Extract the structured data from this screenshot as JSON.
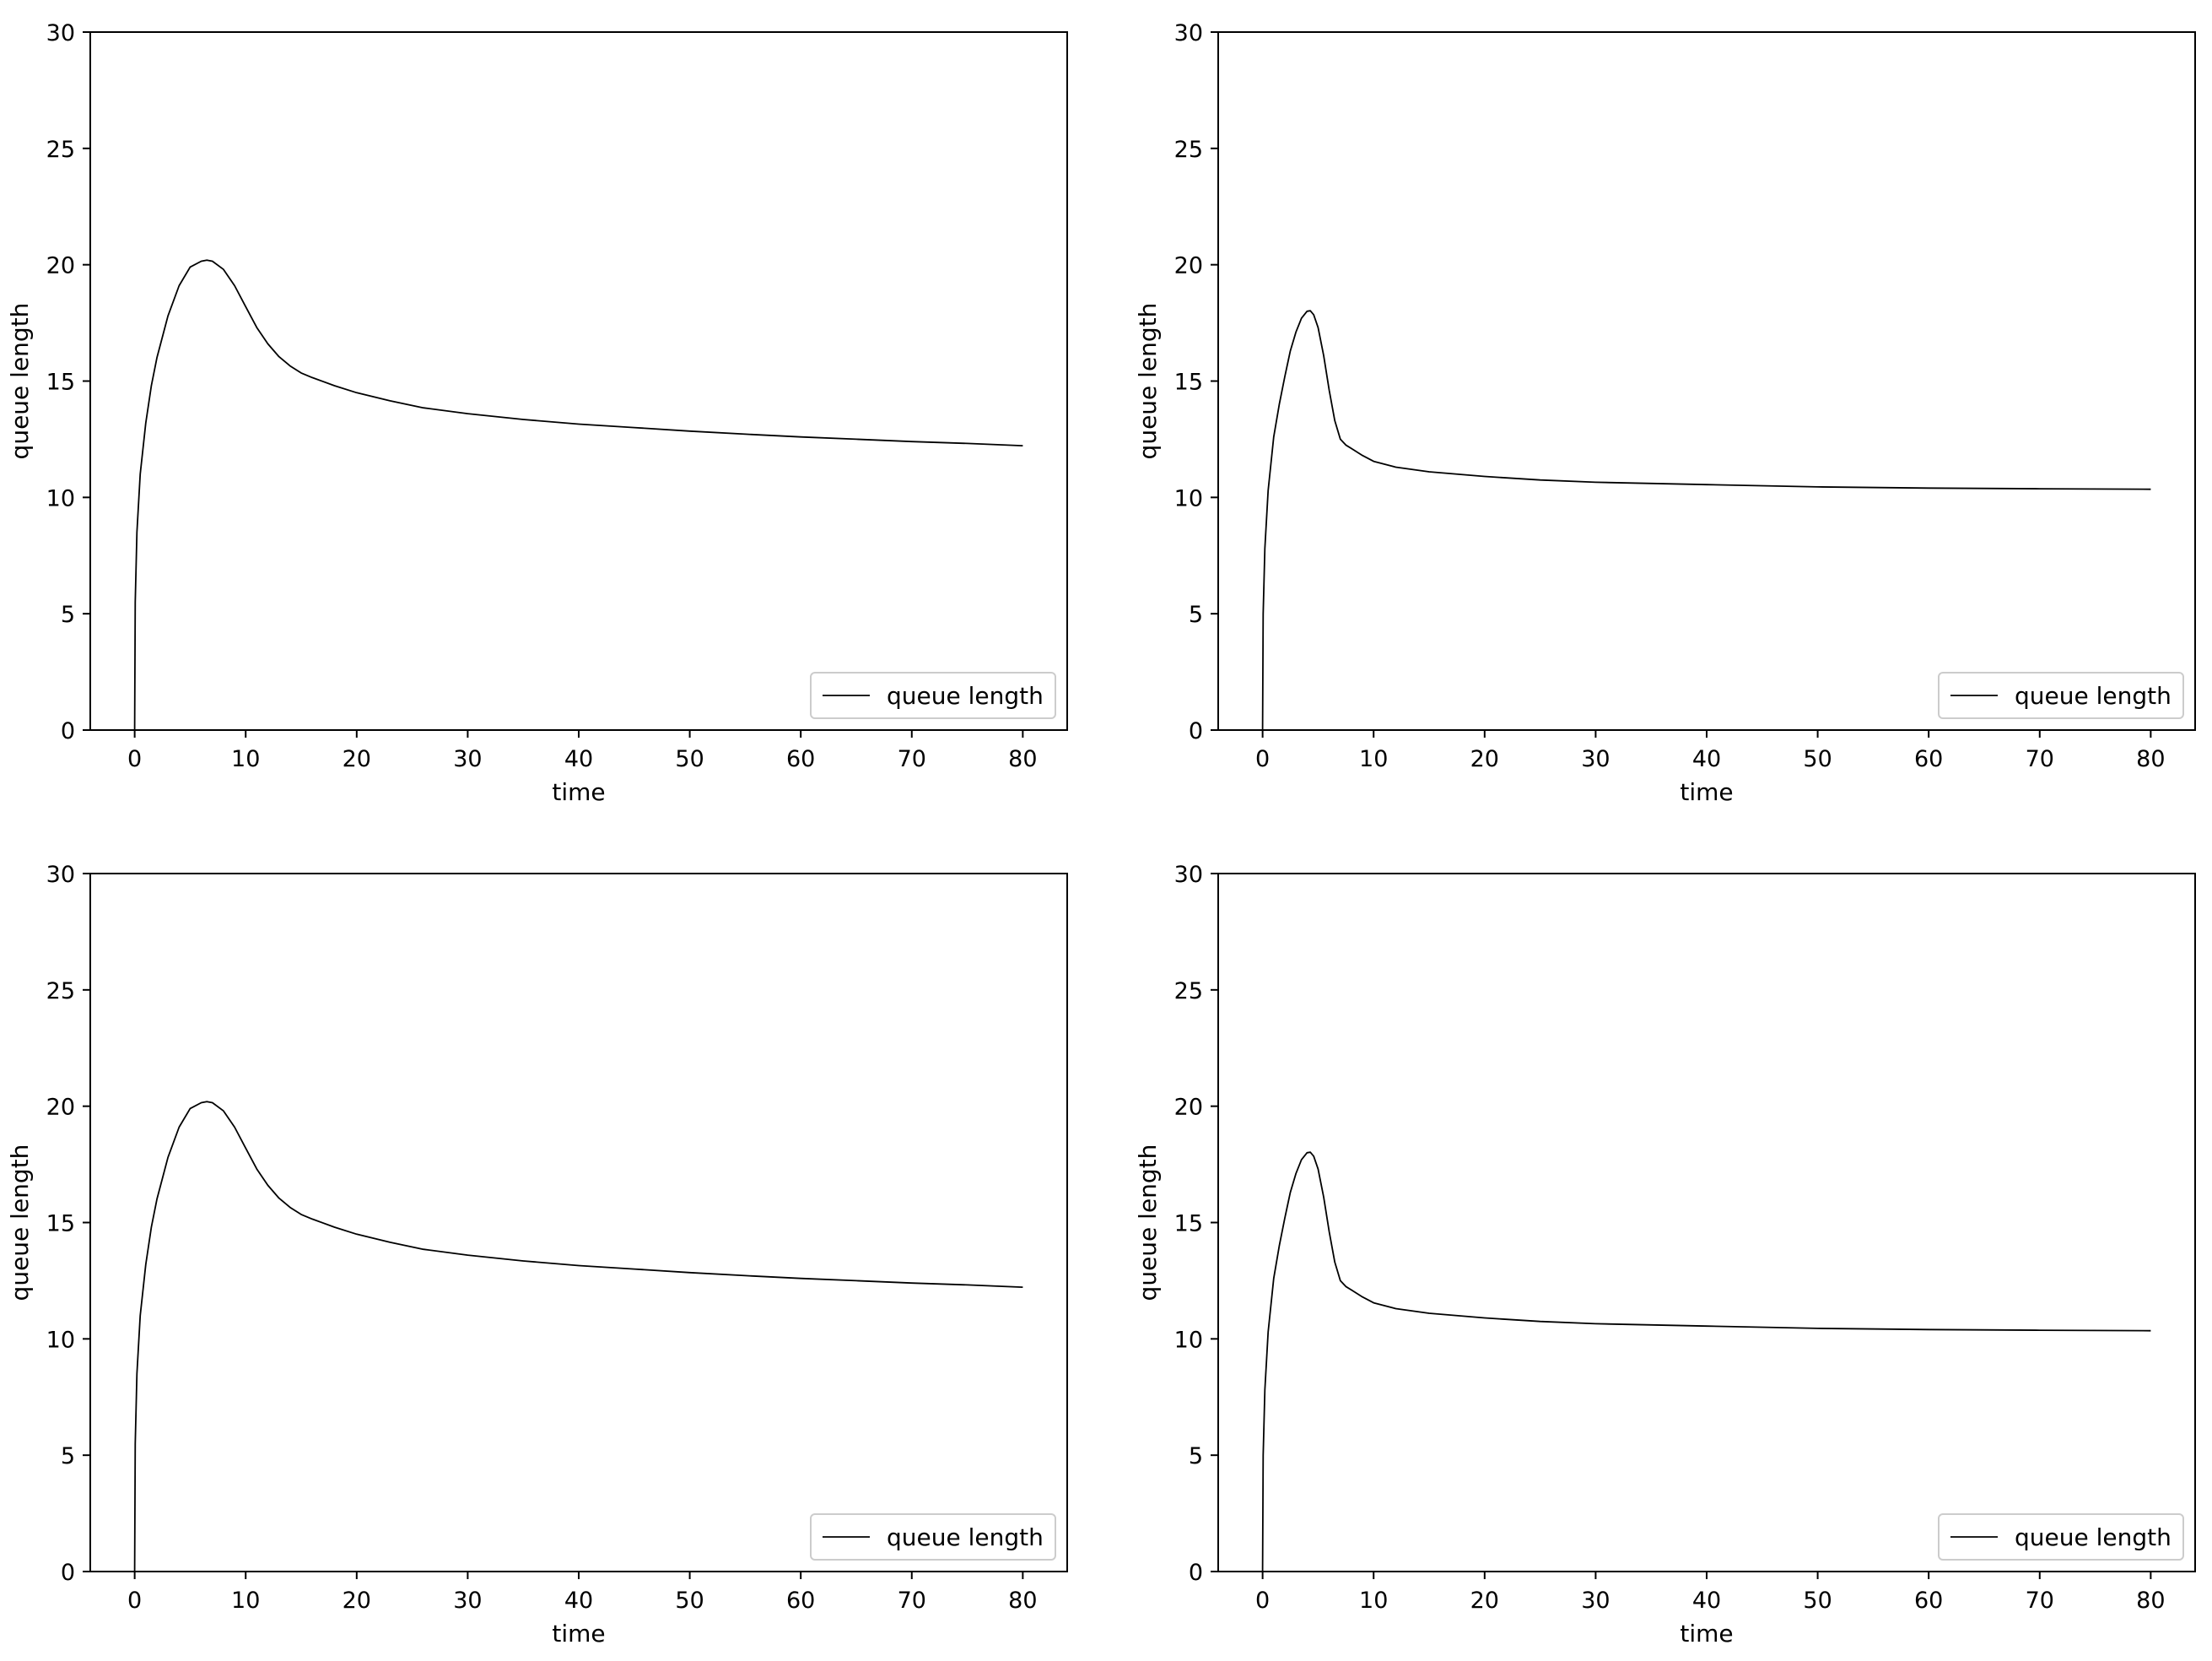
{
  "chart_data": [
    {
      "type": "line",
      "xlabel": "time",
      "ylabel": "queue length",
      "xlim": [
        -4,
        84
      ],
      "ylim": [
        0,
        30
      ],
      "xticks": [
        0,
        10,
        20,
        30,
        40,
        50,
        60,
        70,
        80
      ],
      "yticks": [
        0,
        5,
        10,
        15,
        20,
        25,
        30
      ],
      "grid": false,
      "legend_position": "lower right",
      "series": [
        {
          "name": "queue length",
          "color": "#000000",
          "x": [
            0,
            0.05,
            0.2,
            0.5,
            1,
            1.5,
            2,
            3,
            4,
            5,
            6,
            6.5,
            7,
            8,
            9,
            10,
            11,
            12,
            13,
            14,
            15,
            16,
            18,
            20,
            23,
            26,
            30,
            35,
            40,
            45,
            50,
            55,
            60,
            65,
            70,
            75,
            80
          ],
          "y": [
            0,
            5.5,
            8.5,
            11,
            13.2,
            14.8,
            16,
            17.8,
            19.1,
            19.9,
            20.15,
            20.2,
            20.15,
            19.8,
            19.1,
            18.2,
            17.3,
            16.6,
            16.05,
            15.65,
            15.35,
            15.15,
            14.8,
            14.5,
            14.15,
            13.85,
            13.6,
            13.35,
            13.15,
            13,
            12.85,
            12.72,
            12.6,
            12.5,
            12.4,
            12.32,
            12.22
          ]
        }
      ]
    },
    {
      "type": "line",
      "xlabel": "time",
      "ylabel": "queue length",
      "xlim": [
        -4,
        84
      ],
      "ylim": [
        0,
        30
      ],
      "xticks": [
        0,
        10,
        20,
        30,
        40,
        50,
        60,
        70,
        80
      ],
      "yticks": [
        0,
        5,
        10,
        15,
        20,
        25,
        30
      ],
      "grid": false,
      "legend_position": "lower right",
      "series": [
        {
          "name": "queue length",
          "color": "#000000",
          "x": [
            0,
            0.05,
            0.2,
            0.5,
            1,
            1.5,
            2,
            2.5,
            3,
            3.5,
            4,
            4.3,
            4.6,
            5,
            5.5,
            6,
            6.5,
            7,
            7.5,
            8,
            9,
            10,
            12,
            15,
            20,
            25,
            30,
            40,
            50,
            60,
            70,
            80
          ],
          "y": [
            0,
            5,
            7.8,
            10.3,
            12.6,
            14,
            15.2,
            16.3,
            17.1,
            17.7,
            18,
            18.02,
            17.85,
            17.3,
            16.1,
            14.6,
            13.3,
            12.5,
            12.25,
            12.1,
            11.8,
            11.55,
            11.3,
            11.1,
            10.9,
            10.75,
            10.65,
            10.55,
            10.45,
            10.4,
            10.37,
            10.35
          ]
        }
      ]
    },
    {
      "type": "line",
      "xlabel": "time",
      "ylabel": "queue length",
      "xlim": [
        -4,
        84
      ],
      "ylim": [
        0,
        30
      ],
      "xticks": [
        0,
        10,
        20,
        30,
        40,
        50,
        60,
        70,
        80
      ],
      "yticks": [
        0,
        5,
        10,
        15,
        20,
        25,
        30
      ],
      "grid": false,
      "legend_position": "lower right",
      "series": [
        {
          "name": "queue length",
          "color": "#000000",
          "x": [
            0,
            0.05,
            0.2,
            0.5,
            1,
            1.5,
            2,
            3,
            4,
            5,
            6,
            6.5,
            7,
            8,
            9,
            10,
            11,
            12,
            13,
            14,
            15,
            16,
            18,
            20,
            23,
            26,
            30,
            35,
            40,
            45,
            50,
            55,
            60,
            65,
            70,
            75,
            80
          ],
          "y": [
            0,
            5.5,
            8.5,
            11,
            13.2,
            14.8,
            16,
            17.8,
            19.1,
            19.9,
            20.15,
            20.2,
            20.15,
            19.8,
            19.1,
            18.2,
            17.3,
            16.6,
            16.05,
            15.65,
            15.35,
            15.15,
            14.8,
            14.5,
            14.15,
            13.85,
            13.6,
            13.35,
            13.15,
            13,
            12.85,
            12.72,
            12.6,
            12.5,
            12.4,
            12.32,
            12.22
          ]
        }
      ]
    },
    {
      "type": "line",
      "xlabel": "time",
      "ylabel": "queue length",
      "xlim": [
        -4,
        84
      ],
      "ylim": [
        0,
        30
      ],
      "xticks": [
        0,
        10,
        20,
        30,
        40,
        50,
        60,
        70,
        80
      ],
      "yticks": [
        0,
        5,
        10,
        15,
        20,
        25,
        30
      ],
      "grid": false,
      "legend_position": "lower right",
      "series": [
        {
          "name": "queue length",
          "color": "#000000",
          "x": [
            0,
            0.05,
            0.2,
            0.5,
            1,
            1.5,
            2,
            2.5,
            3,
            3.5,
            4,
            4.3,
            4.6,
            5,
            5.5,
            6,
            6.5,
            7,
            7.5,
            8,
            9,
            10,
            12,
            15,
            20,
            25,
            30,
            40,
            50,
            60,
            70,
            80
          ],
          "y": [
            0,
            5,
            7.8,
            10.3,
            12.6,
            14,
            15.2,
            16.3,
            17.1,
            17.7,
            18,
            18.02,
            17.85,
            17.3,
            16.1,
            14.6,
            13.3,
            12.5,
            12.25,
            12.1,
            11.8,
            11.55,
            11.3,
            11.1,
            10.9,
            10.75,
            10.65,
            10.55,
            10.45,
            10.4,
            10.37,
            10.35
          ]
        }
      ]
    }
  ]
}
